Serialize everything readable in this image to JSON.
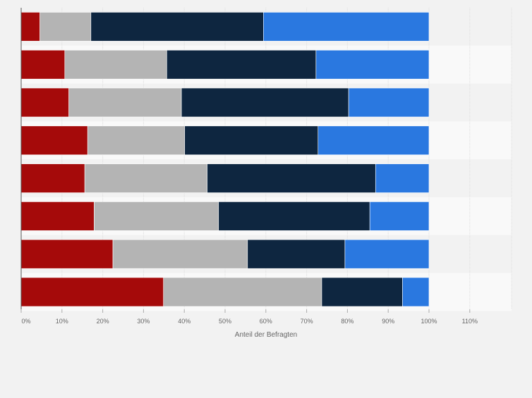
{
  "chart_data": {
    "type": "bar",
    "orientation": "horizontal",
    "stacked": true,
    "xlabel": "Anteil der Befragten",
    "ylabel": "",
    "xlim": [
      0,
      120
    ],
    "x_ticks": [
      {
        "value": 0,
        "label": "0%"
      },
      {
        "value": 10,
        "label": "10%"
      },
      {
        "value": 20,
        "label": "20%"
      },
      {
        "value": 30,
        "label": "30%"
      },
      {
        "value": 40,
        "label": "40%"
      },
      {
        "value": 50,
        "label": "50%"
      },
      {
        "value": 60,
        "label": "60%"
      },
      {
        "value": 70,
        "label": "70%"
      },
      {
        "value": 80,
        "label": "80%"
      },
      {
        "value": 90,
        "label": "90%"
      },
      {
        "value": 100,
        "label": "100%"
      },
      {
        "value": 110,
        "label": "110%"
      }
    ],
    "categories": [
      "",
      "",
      "",
      "",
      "",
      "",
      "",
      ""
    ],
    "series": [
      {
        "color": "#a50a0a",
        "values": [
          4.6,
          10.7,
          11.7,
          16.3,
          15.6,
          17.9,
          22.5,
          34.9
        ]
      },
      {
        "color": "#b4b4b4",
        "values": [
          12.5,
          25.0,
          27.6,
          23.8,
          30.0,
          30.5,
          33.0,
          38.8
        ]
      },
      {
        "color": "#0e2640",
        "values": [
          42.3,
          36.6,
          41.0,
          32.7,
          41.3,
          37.1,
          23.9,
          19.8
        ]
      },
      {
        "color": "#2a78e0",
        "values": [
          40.6,
          27.7,
          19.7,
          27.2,
          13.1,
          14.5,
          20.6,
          6.5
        ]
      }
    ],
    "grid": true,
    "legend": "none"
  }
}
